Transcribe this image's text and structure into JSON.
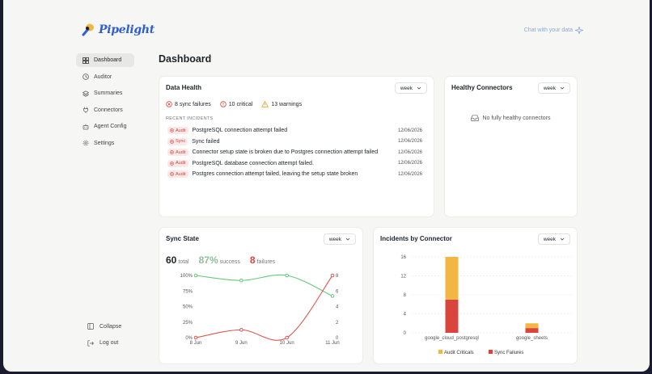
{
  "app": {
    "name": "Pipelight",
    "chat_link": "Chat with your data"
  },
  "nav": [
    {
      "label": "Dashboard",
      "icon": "dashboard-icon",
      "active": true
    },
    {
      "label": "Auditor",
      "icon": "clock-icon"
    },
    {
      "label": "Summaries",
      "icon": "layers-icon"
    },
    {
      "label": "Connectors",
      "icon": "plug-icon"
    },
    {
      "label": "Agent Config",
      "icon": "robot-icon"
    },
    {
      "label": "Settings",
      "icon": "gear-icon"
    }
  ],
  "bottom_nav": {
    "collapse": "Collapse",
    "logout": "Log out"
  },
  "page_title": "Dashboard",
  "data_health": {
    "title": "Data Health",
    "period": "week",
    "sync_failures": "8 sync failures",
    "critical": "10 critical",
    "warnings": "13 warnings",
    "recent_label": "RECENT INCIDENTS",
    "incidents": [
      {
        "type": "Audit",
        "text": "PostgreSQL connection attempt failed",
        "date": "12/06/2026"
      },
      {
        "type": "Sync",
        "text": "Sync failed",
        "date": "12/06/2026"
      },
      {
        "type": "Audit",
        "text": "Connector setup state is broken due to Postgres connection attempt failed",
        "date": "12/06/2026"
      },
      {
        "type": "Audit",
        "text": "PostgreSQL database connection attempt failed.",
        "date": "12/06/2026"
      },
      {
        "type": "Audit",
        "text": "Postgres connection attempt failed, leaving the setup state broken",
        "date": "12/06/2026"
      }
    ]
  },
  "healthy_connectors": {
    "title": "Healthy Connectors",
    "period": "week",
    "empty": "No fully healthy connectors"
  },
  "sync_state": {
    "title": "Sync State",
    "period": "week",
    "total_value": "60",
    "total_label": "total",
    "success_value": "87%",
    "success_label": "success",
    "failures_value": "8",
    "failures_label": "failures"
  },
  "incidents_by_connector": {
    "title": "Incidents by Connector",
    "period": "week"
  },
  "colors": {
    "success": "#52c46b",
    "failure": "#d9453c",
    "audit": "#f2b642",
    "accent": "#2f5fd0"
  },
  "chart_data": [
    {
      "type": "line",
      "x": [
        "8 Jun",
        "9 Jun",
        "10 Jun",
        "11 Jun"
      ],
      "series": [
        {
          "values": [
            100,
            92,
            100,
            67
          ],
          "axis": "left"
        },
        {
          "values": [
            0,
            1,
            0,
            8
          ],
          "axis": "right"
        }
      ],
      "y_left_ticks": [
        "0%",
        "25%",
        "50%",
        "75%",
        "100%"
      ],
      "y_right_ticks": [
        "0",
        "2",
        "4",
        "6",
        "8"
      ],
      "ylim_left": [
        0,
        100
      ],
      "ylim_right": [
        0,
        8
      ]
    },
    {
      "type": "bar",
      "stacked": true,
      "categories": [
        "google_cloud_postgresql",
        "google_sheets"
      ],
      "series": [
        {
          "name": "Sync Failures",
          "values": [
            7,
            1
          ]
        },
        {
          "name": "Audit Criticals",
          "values": [
            9,
            1
          ]
        }
      ],
      "y_ticks": [
        "0",
        "4",
        "8",
        "12",
        "16"
      ],
      "ylim": [
        0,
        16
      ],
      "legend": [
        "Audit Criticals",
        "Sync Failures"
      ]
    }
  ]
}
